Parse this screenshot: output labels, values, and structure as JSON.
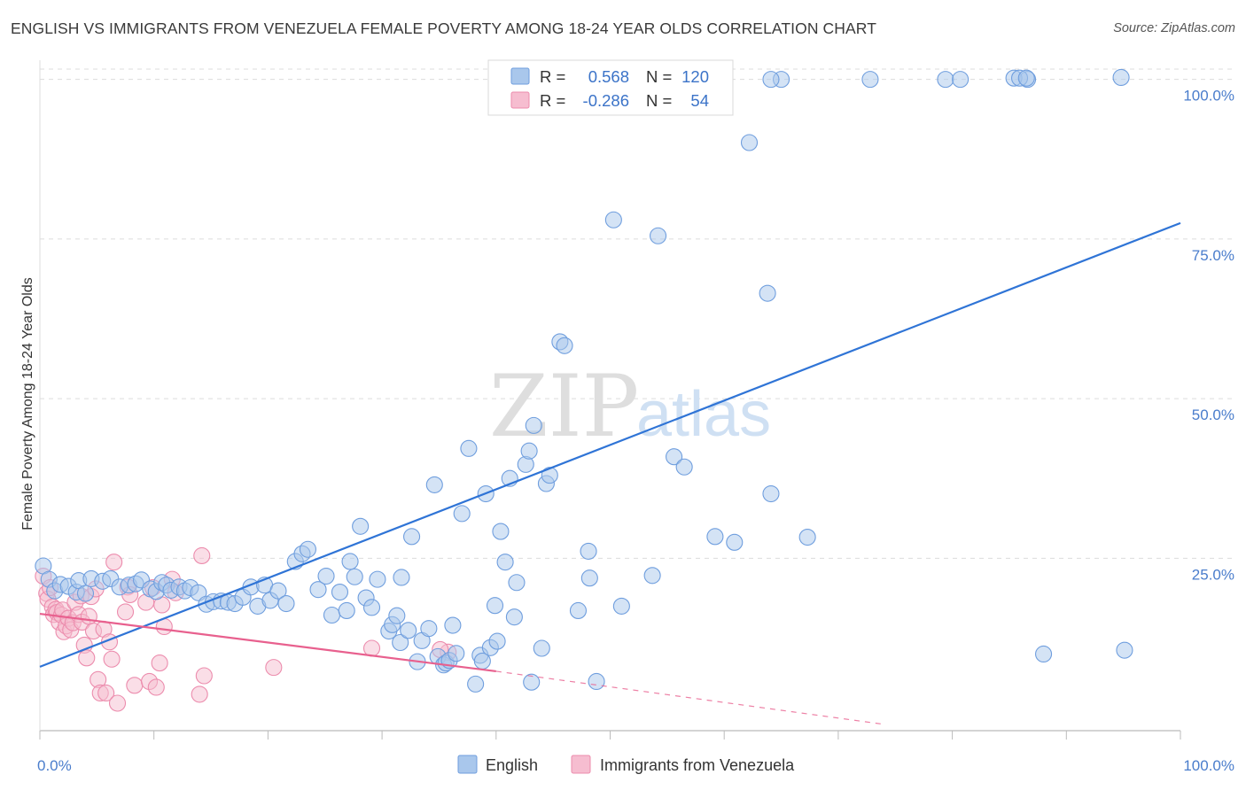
{
  "title": "ENGLISH VS IMMIGRANTS FROM VENEZUELA FEMALE POVERTY AMONG 18-24 YEAR OLDS CORRELATION CHART",
  "source": "Source: ZipAtlas.com",
  "watermark": {
    "zip": "ZIP",
    "atlas": "atlas"
  },
  "colors": {
    "english_fill": "#a9c7ec",
    "english_stroke": "#6f9ede",
    "english_line": "#2f74d6",
    "venezuela_fill": "#f6bdd0",
    "venezuela_stroke": "#ec8cad",
    "venezuela_line": "#e8608e",
    "tick_text": "#4a7dcc",
    "grid": "#dcdcdc"
  },
  "legend": {
    "r_label": "R =",
    "n_label": "N =",
    "rows": [
      {
        "r": "0.568",
        "n": "120"
      },
      {
        "r": "-0.286",
        "n": "54"
      }
    ]
  },
  "bottom_legend": [
    "English",
    "Immigrants from Venezuela"
  ],
  "chart_data": {
    "type": "scatter",
    "title": "ENGLISH VS IMMIGRANTS FROM VENEZUELA FEMALE POVERTY AMONG 18-24 YEAR OLDS CORRELATION CHART",
    "xlabel": "",
    "ylabel": "Female Poverty Among 18-24 Year Olds",
    "xlim": [
      0,
      100
    ],
    "ylim": [
      -2,
      103
    ],
    "x_tick_labels": [
      {
        "value": 0,
        "label": "0.0%"
      },
      {
        "value": 100,
        "label": "100.0%"
      }
    ],
    "y_tick_labels": [
      {
        "value": 25,
        "label": "25.0%"
      },
      {
        "value": 50,
        "label": "50.0%"
      },
      {
        "value": 75,
        "label": "75.0%"
      },
      {
        "value": 100,
        "label": "100.0%"
      }
    ],
    "y_gridlines": [
      25,
      50,
      75,
      100
    ],
    "series": [
      {
        "name": "English",
        "r": 0.568,
        "n": 120,
        "trend": {
          "x": [
            0,
            100
          ],
          "y": [
            8.0,
            77.5
          ]
        },
        "points": [
          [
            0.3,
            23.8
          ],
          [
            0.8,
            21.7
          ],
          [
            1.3,
            19.9
          ],
          [
            1.8,
            20.9
          ],
          [
            2.5,
            20.6
          ],
          [
            3.2,
            19.7
          ],
          [
            3.4,
            21.5
          ],
          [
            4.0,
            19.5
          ],
          [
            4.5,
            21.8
          ],
          [
            5.5,
            21.4
          ],
          [
            6.2,
            21.8
          ],
          [
            7.0,
            20.5
          ],
          [
            7.8,
            20.8
          ],
          [
            8.4,
            21.0
          ],
          [
            8.9,
            21.6
          ],
          [
            9.7,
            20.2
          ],
          [
            10.2,
            19.8
          ],
          [
            10.7,
            21.2
          ],
          [
            11.1,
            20.8
          ],
          [
            11.5,
            20.0
          ],
          [
            12.2,
            20.5
          ],
          [
            12.7,
            19.9
          ],
          [
            13.2,
            20.4
          ],
          [
            13.9,
            19.6
          ],
          [
            14.6,
            17.8
          ],
          [
            15.2,
            18.2
          ],
          [
            15.9,
            18.3
          ],
          [
            16.5,
            18.1
          ],
          [
            17.1,
            17.9
          ],
          [
            17.8,
            18.9
          ],
          [
            18.5,
            20.5
          ],
          [
            19.1,
            17.5
          ],
          [
            19.7,
            20.8
          ],
          [
            20.2,
            18.4
          ],
          [
            20.9,
            19.9
          ],
          [
            21.6,
            17.9
          ],
          [
            22.4,
            24.5
          ],
          [
            23.0,
            25.7
          ],
          [
            23.5,
            26.4
          ],
          [
            24.4,
            20.1
          ],
          [
            25.1,
            22.2
          ],
          [
            25.6,
            16.1
          ],
          [
            26.3,
            19.7
          ],
          [
            26.9,
            16.8
          ],
          [
            27.2,
            24.5
          ],
          [
            27.6,
            22.1
          ],
          [
            28.1,
            30.0
          ],
          [
            28.6,
            18.8
          ],
          [
            29.1,
            17.3
          ],
          [
            29.6,
            21.7
          ],
          [
            30.6,
            13.6
          ],
          [
            30.9,
            14.6
          ],
          [
            31.3,
            16.0
          ],
          [
            31.6,
            11.8
          ],
          [
            31.7,
            22.0
          ],
          [
            32.3,
            13.7
          ],
          [
            32.6,
            28.4
          ],
          [
            33.1,
            8.8
          ],
          [
            33.5,
            12.1
          ],
          [
            34.1,
            14.0
          ],
          [
            34.6,
            36.5
          ],
          [
            34.9,
            9.6
          ],
          [
            35.4,
            8.3
          ],
          [
            35.6,
            8.6
          ],
          [
            35.9,
            9.0
          ],
          [
            36.2,
            14.5
          ],
          [
            36.5,
            10.1
          ],
          [
            37.0,
            32.0
          ],
          [
            37.6,
            42.2
          ],
          [
            38.2,
            5.3
          ],
          [
            38.6,
            9.8
          ],
          [
            38.8,
            8.9
          ],
          [
            39.1,
            35.1
          ],
          [
            39.5,
            11.0
          ],
          [
            39.9,
            17.6
          ],
          [
            40.1,
            12.0
          ],
          [
            40.4,
            29.2
          ],
          [
            40.8,
            24.4
          ],
          [
            41.2,
            37.5
          ],
          [
            41.6,
            15.8
          ],
          [
            41.8,
            21.2
          ],
          [
            42.6,
            39.7
          ],
          [
            42.9,
            41.8
          ],
          [
            43.1,
            5.6
          ],
          [
            43.3,
            45.8
          ],
          [
            44.0,
            10.9
          ],
          [
            44.4,
            36.7
          ],
          [
            44.7,
            38.0
          ],
          [
            45.6,
            58.9
          ],
          [
            46.0,
            58.3
          ],
          [
            47.2,
            16.8
          ],
          [
            48.1,
            26.1
          ],
          [
            48.2,
            21.9
          ],
          [
            48.8,
            5.7
          ],
          [
            50.3,
            78.0
          ],
          [
            51.0,
            17.5
          ],
          [
            53.7,
            22.3
          ],
          [
            54.2,
            75.5
          ],
          [
            55.6,
            40.9
          ],
          [
            56.5,
            39.3
          ],
          [
            59.2,
            28.4
          ],
          [
            60.9,
            27.5
          ],
          [
            62.2,
            90.1
          ],
          [
            63.8,
            66.5
          ],
          [
            64.1,
            35.1
          ],
          [
            65.0,
            100.0
          ],
          [
            67.3,
            28.3
          ],
          [
            72.8,
            100.0
          ],
          [
            79.4,
            100.0
          ],
          [
            86.6,
            100.0
          ],
          [
            85.4,
            100.2
          ],
          [
            85.9,
            100.2
          ],
          [
            80.7,
            100.0
          ],
          [
            86.5,
            100.2
          ],
          [
            94.8,
            100.3
          ],
          [
            95.1,
            10.6
          ],
          [
            64.1,
            100.0
          ],
          [
            88.0,
            10.0
          ]
        ]
      },
      {
        "name": "Immigrants from Venezuela",
        "r": -0.286,
        "n": 54,
        "trend": {
          "x": [
            0,
            40
          ],
          "y": [
            16.3,
            7.3
          ]
        },
        "trend_dashed": {
          "x": [
            40,
            74
          ],
          "y": [
            7.3,
            -1.0
          ]
        },
        "points": [
          [
            0.3,
            22.2
          ],
          [
            0.6,
            19.5
          ],
          [
            0.7,
            18.6
          ],
          [
            0.9,
            20.4
          ],
          [
            1.1,
            17.4
          ],
          [
            1.2,
            16.2
          ],
          [
            1.4,
            17.0
          ],
          [
            1.5,
            16.5
          ],
          [
            1.7,
            15.0
          ],
          [
            1.9,
            16.1
          ],
          [
            2.0,
            16.9
          ],
          [
            2.1,
            13.5
          ],
          [
            2.3,
            14.4
          ],
          [
            2.5,
            15.6
          ],
          [
            2.7,
            13.8
          ],
          [
            2.9,
            14.9
          ],
          [
            3.1,
            18.1
          ],
          [
            3.4,
            16.2
          ],
          [
            3.6,
            19.1
          ],
          [
            3.7,
            15.0
          ],
          [
            3.9,
            11.4
          ],
          [
            4.1,
            9.4
          ],
          [
            4.3,
            15.9
          ],
          [
            4.5,
            19.0
          ],
          [
            4.7,
            13.6
          ],
          [
            4.9,
            20.2
          ],
          [
            5.1,
            6.0
          ],
          [
            5.3,
            3.9
          ],
          [
            5.6,
            13.9
          ],
          [
            5.8,
            3.9
          ],
          [
            6.1,
            11.9
          ],
          [
            6.3,
            9.2
          ],
          [
            6.5,
            24.4
          ],
          [
            6.8,
            2.3
          ],
          [
            7.5,
            16.6
          ],
          [
            7.7,
            20.5
          ],
          [
            7.9,
            19.3
          ],
          [
            8.3,
            5.1
          ],
          [
            9.3,
            18.1
          ],
          [
            9.6,
            5.7
          ],
          [
            9.9,
            20.4
          ],
          [
            10.2,
            4.8
          ],
          [
            10.5,
            8.6
          ],
          [
            10.7,
            17.7
          ],
          [
            10.9,
            14.3
          ],
          [
            11.6,
            21.7
          ],
          [
            11.9,
            19.6
          ],
          [
            14.0,
            3.7
          ],
          [
            14.4,
            6.6
          ],
          [
            14.2,
            25.4
          ],
          [
            20.5,
            7.9
          ],
          [
            29.1,
            10.9
          ],
          [
            35.8,
            10.3
          ],
          [
            35.1,
            10.7
          ]
        ]
      }
    ]
  }
}
